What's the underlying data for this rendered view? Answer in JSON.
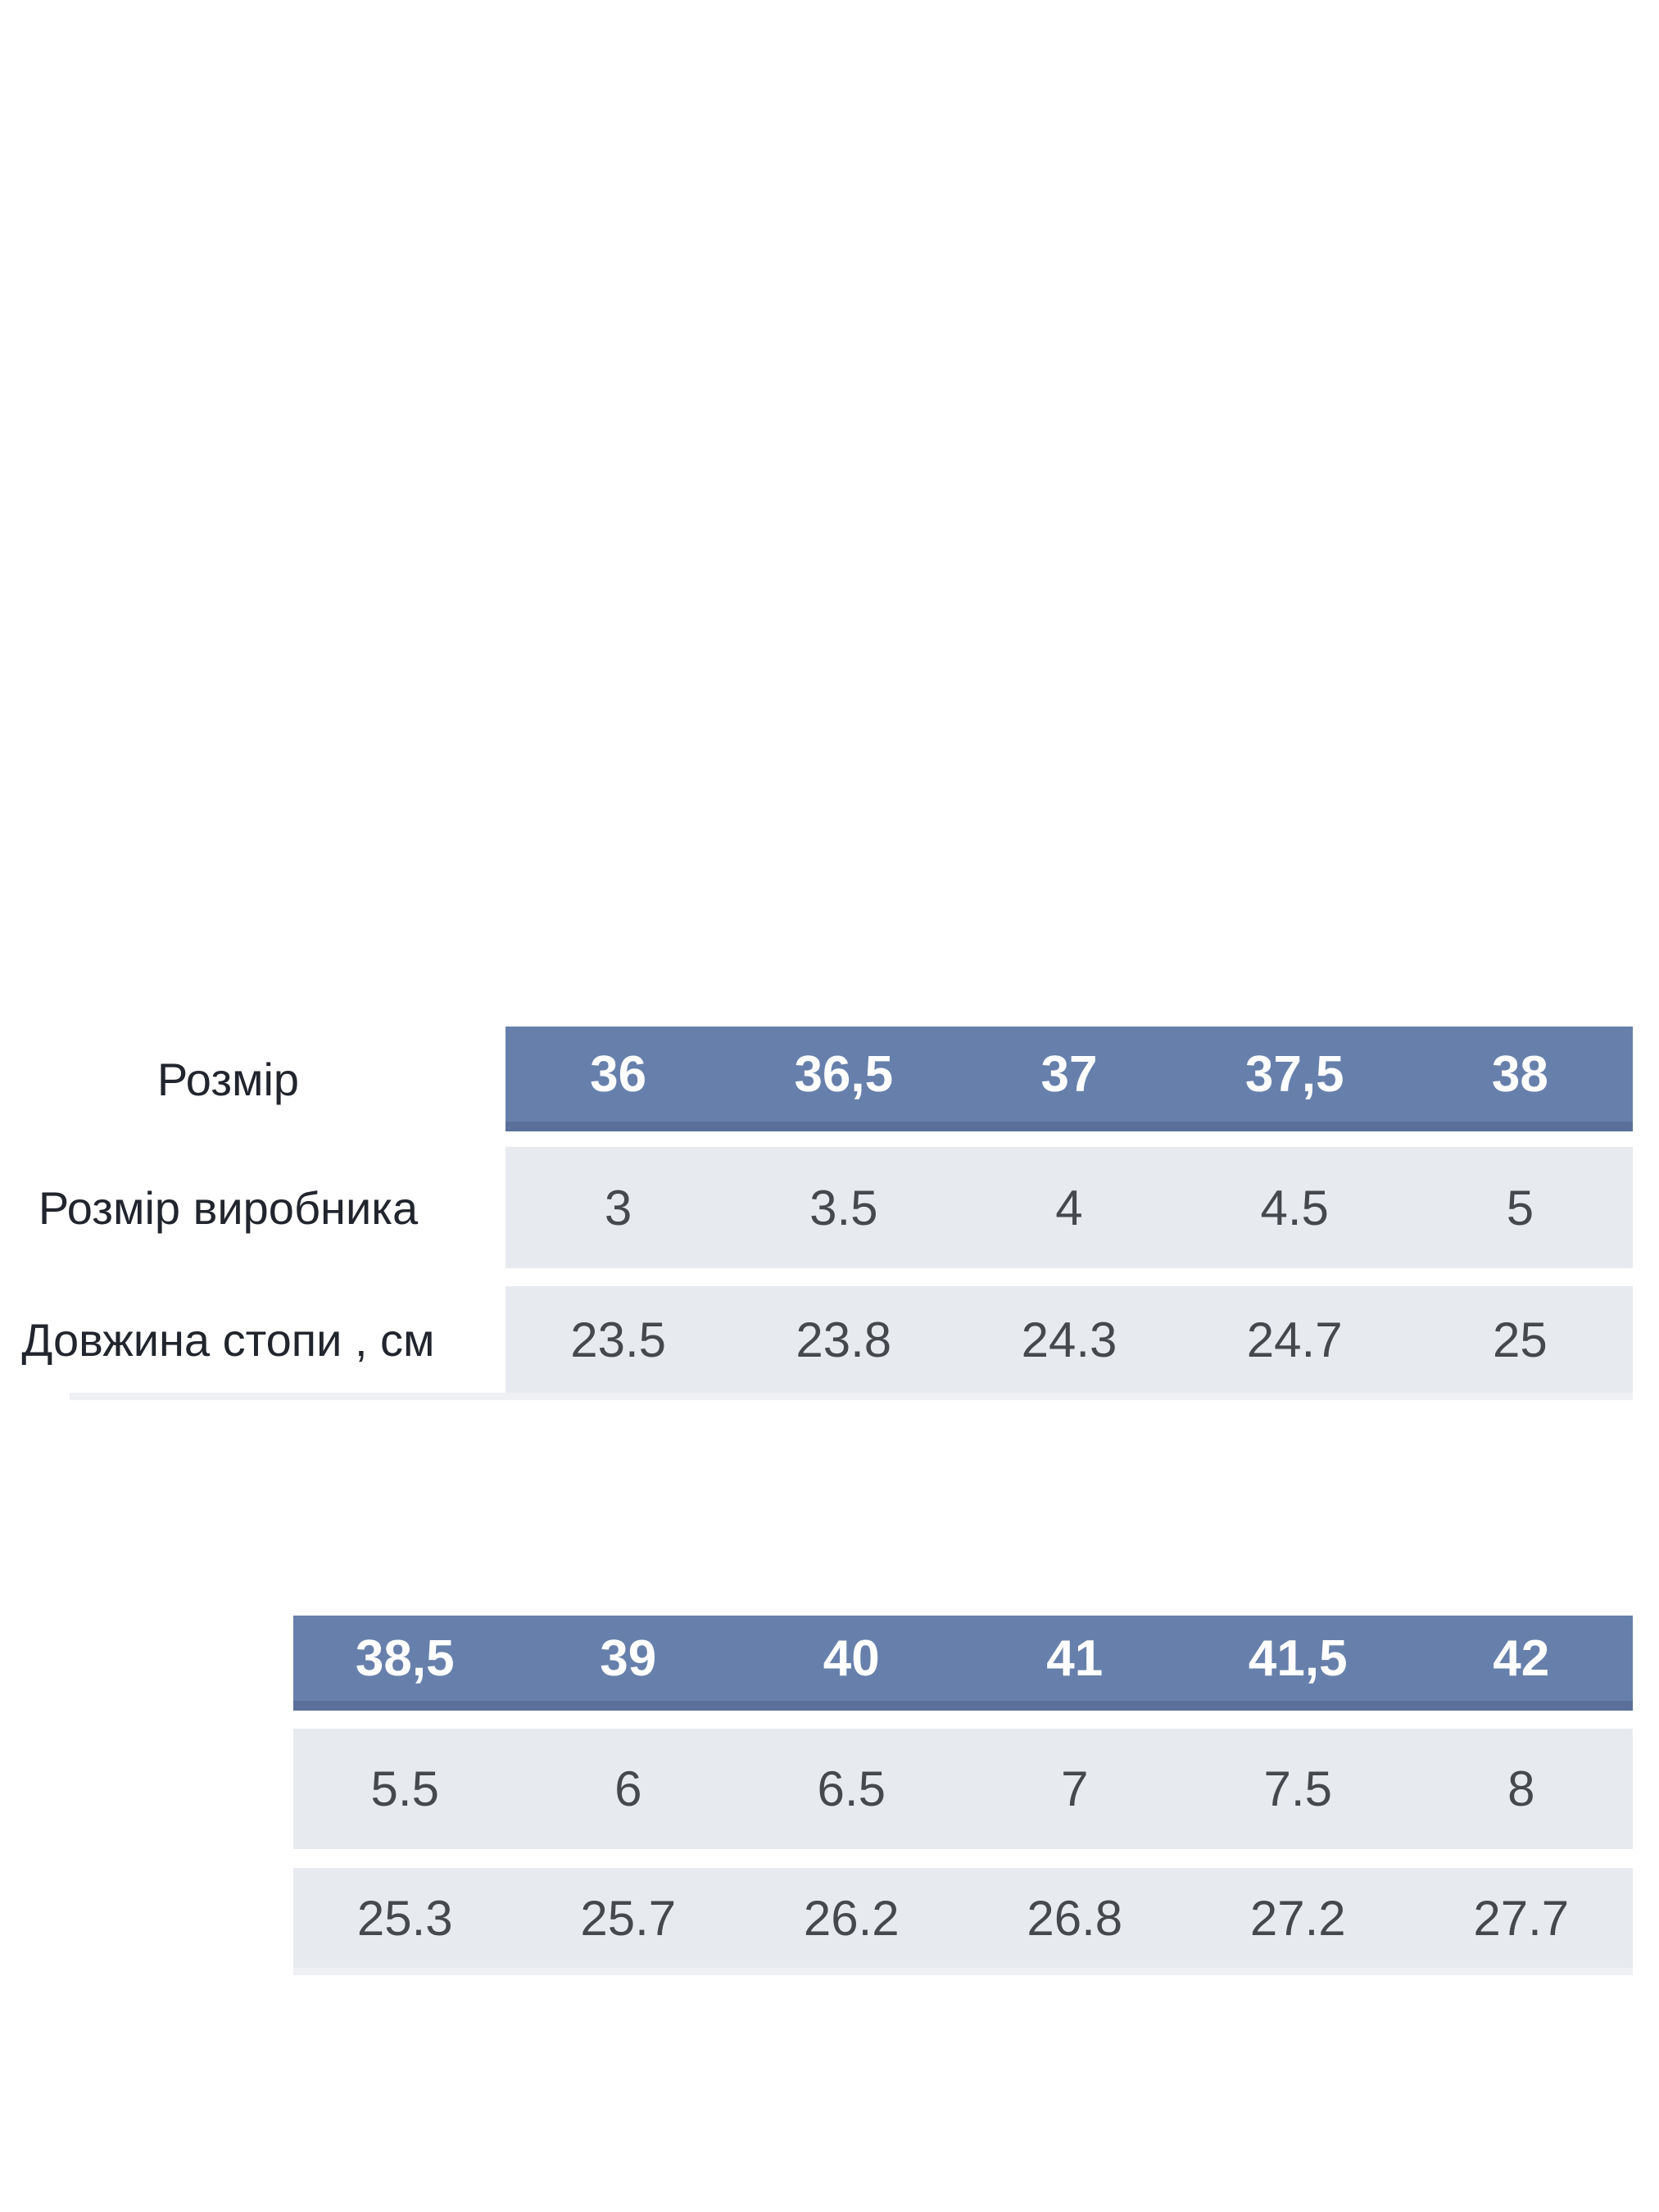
{
  "colors": {
    "page_bg": "#ffffff",
    "header_bg": "#6780ab",
    "header_border": "#5a7099",
    "header_text": "#ffffff",
    "row_bg": "#e7eaee",
    "cell_text": "#45494e",
    "label_text": "#21252d",
    "rule": "#eef0f3"
  },
  "chart_data": [
    {
      "type": "table",
      "name": "shoe-size-chart-part-1",
      "header_row": {
        "label": "Розмір",
        "values": [
          "36",
          "36,5",
          "37",
          "37,5",
          "38"
        ]
      },
      "rows": [
        {
          "label": "Розмір виробника",
          "values": [
            "3",
            "3.5",
            "4",
            "4.5",
            "5"
          ]
        },
        {
          "label": "Довжина стопи , см",
          "values": [
            "23.5",
            "23.8",
            "24.3",
            "24.7",
            "25"
          ]
        }
      ],
      "layout_hints": {
        "header_style": "blue-band",
        "row_style": "grey-band",
        "label_column": true
      }
    },
    {
      "type": "table",
      "name": "shoe-size-chart-part-2",
      "header_row": {
        "label": "",
        "values": [
          "38,5",
          "39",
          "40",
          "41",
          "41,5",
          "42"
        ]
      },
      "rows": [
        {
          "label": "",
          "values": [
            "5.5",
            "6",
            "6.5",
            "7",
            "7.5",
            "8"
          ]
        },
        {
          "label": "",
          "values": [
            "25.3",
            "25.7",
            "26.2",
            "26.8",
            "27.2",
            "27.7"
          ]
        }
      ],
      "layout_hints": {
        "header_style": "blue-band",
        "row_style": "grey-band",
        "label_column": false
      }
    }
  ]
}
